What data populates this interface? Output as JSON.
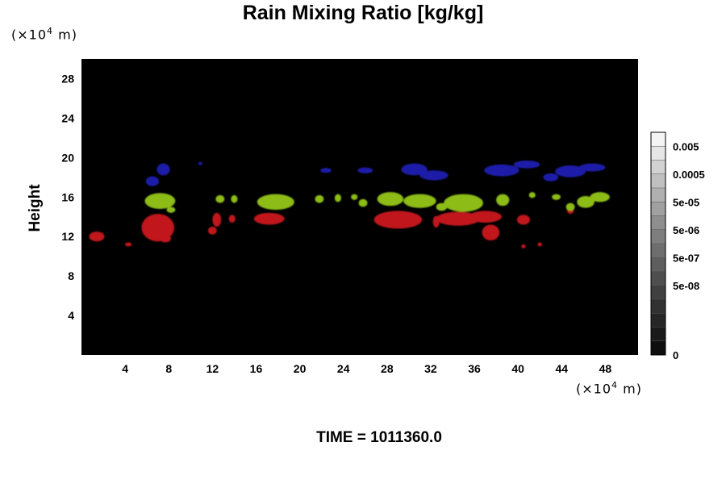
{
  "title": "Rain Mixing Ratio [kg/kg]",
  "time_label": "TIME = 1011360.0",
  "chart_data": {
    "type": "heatmap",
    "title": "Rain Mixing Ratio [kg/kg]",
    "xlabel": "",
    "ylabel": "Height",
    "x_unit": {
      "prefix": "(×10",
      "exp": "4",
      "suffix": " m)"
    },
    "y_unit": {
      "prefix": "(×10",
      "exp": "4",
      "suffix": " m)"
    },
    "xlim": [
      0,
      51
    ],
    "ylim": [
      0,
      30
    ],
    "x_ticks": [
      4,
      8,
      12,
      16,
      20,
      24,
      28,
      32,
      36,
      40,
      44,
      48
    ],
    "x_tick_labels": [
      "4",
      "8",
      "12",
      "16",
      "20",
      "24",
      "28",
      "32",
      "36",
      "40",
      "44",
      "48"
    ],
    "y_ticks": [
      4,
      8,
      12,
      16,
      20,
      24,
      28
    ],
    "y_tick_labels": [
      "4",
      "8",
      "12",
      "16",
      "20",
      "24",
      "28"
    ],
    "background_color": "#000000",
    "colorbar": {
      "labels": [
        "0.005",
        "0.0005",
        "5e-05",
        "5e-06",
        "5e-07",
        "5e-08",
        "0"
      ],
      "colors_top_to_bottom": [
        "#f4f4f4",
        "#e6e6e6",
        "#d2d2d2",
        "#c0c0c0",
        "#b0b0b0",
        "#a0a0a0",
        "#8e8e8e",
        "#7e7e7e",
        "#6e6e6e",
        "#5e5e5e",
        "#4e4e4e",
        "#404040",
        "#323232",
        "#262626",
        "#1a1a1a",
        "#0e0e0e"
      ]
    },
    "regions": [
      {
        "class": "red",
        "color": "#c0161a",
        "blobs": [
          [
            1.4,
            12.0,
            0.7,
            0.5
          ],
          [
            4.3,
            11.2,
            0.3,
            0.2
          ],
          [
            7.0,
            12.9,
            1.5,
            1.4
          ],
          [
            7.7,
            11.8,
            0.5,
            0.4
          ],
          [
            12.0,
            12.6,
            0.4,
            0.4
          ],
          [
            12.4,
            13.7,
            0.4,
            0.7
          ],
          [
            13.8,
            13.8,
            0.3,
            0.4
          ],
          [
            17.2,
            13.8,
            1.4,
            0.6
          ],
          [
            29.0,
            13.7,
            2.2,
            0.9
          ],
          [
            32.5,
            13.5,
            0.3,
            0.6
          ],
          [
            34.5,
            13.8,
            2.0,
            0.7
          ],
          [
            37.0,
            14.0,
            1.5,
            0.6
          ],
          [
            37.5,
            12.4,
            0.8,
            0.8
          ],
          [
            40.5,
            13.7,
            0.6,
            0.5
          ],
          [
            40.5,
            11.0,
            0.2,
            0.2
          ],
          [
            42.0,
            11.2,
            0.2,
            0.2
          ],
          [
            44.8,
            14.6,
            0.3,
            0.3
          ]
        ]
      },
      {
        "class": "green",
        "color": "#8dbc14",
        "blobs": [
          [
            7.2,
            15.6,
            1.4,
            0.8
          ],
          [
            8.2,
            14.7,
            0.4,
            0.3
          ],
          [
            12.7,
            15.8,
            0.4,
            0.4
          ],
          [
            14.0,
            15.8,
            0.3,
            0.4
          ],
          [
            17.8,
            15.5,
            1.7,
            0.8
          ],
          [
            21.8,
            15.8,
            0.4,
            0.4
          ],
          [
            23.5,
            15.9,
            0.3,
            0.4
          ],
          [
            25.0,
            16.0,
            0.3,
            0.3
          ],
          [
            25.8,
            15.4,
            0.4,
            0.4
          ],
          [
            28.3,
            15.8,
            1.2,
            0.7
          ],
          [
            31.0,
            15.6,
            1.5,
            0.7
          ],
          [
            33.0,
            15.0,
            0.5,
            0.4
          ],
          [
            35.0,
            15.4,
            1.8,
            0.9
          ],
          [
            38.6,
            15.7,
            0.6,
            0.6
          ],
          [
            41.3,
            16.2,
            0.3,
            0.3
          ],
          [
            43.5,
            16.0,
            0.4,
            0.3
          ],
          [
            44.8,
            15.0,
            0.4,
            0.4
          ],
          [
            46.2,
            15.5,
            0.8,
            0.6
          ],
          [
            47.5,
            16.0,
            0.9,
            0.5
          ]
        ]
      },
      {
        "class": "blue",
        "color": "#1e1ea8",
        "blobs": [
          [
            6.5,
            17.6,
            0.6,
            0.5
          ],
          [
            7.5,
            18.8,
            0.6,
            0.6
          ],
          [
            10.9,
            19.4,
            0.2,
            0.15
          ],
          [
            22.4,
            18.7,
            0.5,
            0.25
          ],
          [
            26.0,
            18.7,
            0.7,
            0.3
          ],
          [
            30.5,
            18.8,
            1.2,
            0.6
          ],
          [
            32.3,
            18.2,
            1.3,
            0.5
          ],
          [
            38.5,
            18.7,
            1.6,
            0.6
          ],
          [
            40.8,
            19.3,
            1.2,
            0.4
          ],
          [
            43.0,
            18.0,
            0.7,
            0.4
          ],
          [
            44.8,
            18.6,
            1.4,
            0.6
          ],
          [
            46.8,
            19.0,
            1.2,
            0.4
          ]
        ]
      }
    ]
  }
}
